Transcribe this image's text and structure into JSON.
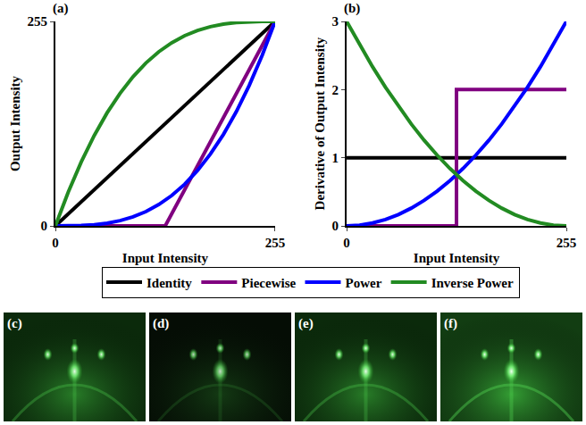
{
  "chart_data": [
    {
      "type": "line",
      "label": "(a)",
      "x_label": "Input Intensity",
      "y_label": "Output Intensity",
      "xlim": [
        0,
        255
      ],
      "ylim": [
        0,
        255
      ],
      "xticks": [
        0,
        255
      ],
      "yticks": [
        0,
        255
      ],
      "grid": false,
      "legend": "bottom",
      "series": [
        {
          "name": "Identity",
          "color": "#000000",
          "x": [
            0,
            255
          ],
          "values": [
            0,
            255
          ]
        },
        {
          "name": "Piecewise",
          "color": "#800080",
          "x": [
            0,
            127.5,
            255
          ],
          "values": [
            0,
            0,
            255
          ]
        },
        {
          "name": "Power",
          "color": "#0000ff",
          "x": [
            0,
            15,
            30,
            45,
            60,
            75,
            90,
            105,
            120,
            135,
            150,
            165,
            180,
            195,
            210,
            225,
            240,
            255
          ],
          "values": [
            0,
            0.05,
            0.42,
            1.4,
            3.32,
            6.49,
            11.21,
            17.81,
            26.58,
            37.84,
            51.9,
            69.09,
            89.69,
            114.03,
            142.42,
            175.2,
            212.6,
            255
          ]
        },
        {
          "name": "Inverse Power",
          "color": "#228b22",
          "x": [
            0,
            15,
            30,
            45,
            60,
            75,
            90,
            105,
            120,
            135,
            150,
            165,
            180,
            195,
            210,
            225,
            240,
            255
          ],
          "values": [
            0,
            42.4,
            79.8,
            112.58,
            140.97,
            165.31,
            185.91,
            203.1,
            217.16,
            228.42,
            237.19,
            243.79,
            248.51,
            251.68,
            253.6,
            254.58,
            254.95,
            255
          ]
        }
      ]
    },
    {
      "type": "line",
      "label": "(b)",
      "x_label": "Input Intensity",
      "y_label": "Derivative of Output Intensity",
      "xlim": [
        0,
        255
      ],
      "ylim": [
        0,
        3
      ],
      "xticks": [
        0,
        255
      ],
      "yticks": [
        0,
        1,
        2,
        3
      ],
      "grid": false,
      "legend": "bottom",
      "series": [
        {
          "name": "Identity",
          "color": "#000000",
          "x": [
            0,
            255
          ],
          "values": [
            1,
            1
          ]
        },
        {
          "name": "Piecewise",
          "color": "#800080",
          "x": [
            0,
            127.5,
            127.5,
            255
          ],
          "values": [
            0,
            0,
            2,
            2
          ]
        },
        {
          "name": "Power",
          "color": "#0000ff",
          "x": [
            0,
            15,
            30,
            45,
            60,
            75,
            90,
            105,
            120,
            135,
            150,
            165,
            180,
            195,
            210,
            225,
            240,
            255
          ],
          "values": [
            0,
            0.01,
            0.042,
            0.093,
            0.166,
            0.26,
            0.374,
            0.509,
            0.664,
            0.841,
            1.038,
            1.256,
            1.495,
            1.754,
            2.035,
            2.336,
            2.657,
            3
          ]
        },
        {
          "name": "Inverse Power",
          "color": "#228b22",
          "x": [
            0,
            15,
            30,
            45,
            60,
            75,
            90,
            105,
            120,
            135,
            150,
            165,
            180,
            195,
            210,
            225,
            240,
            255
          ],
          "values": [
            3,
            2.657,
            2.336,
            2.035,
            1.754,
            1.495,
            1.256,
            1.038,
            0.841,
            0.664,
            0.509,
            0.374,
            0.26,
            0.166,
            0.093,
            0.042,
            0.01,
            0
          ]
        }
      ]
    }
  ],
  "image_panels": [
    "(c)",
    "(d)",
    "(e)",
    "(f)"
  ]
}
